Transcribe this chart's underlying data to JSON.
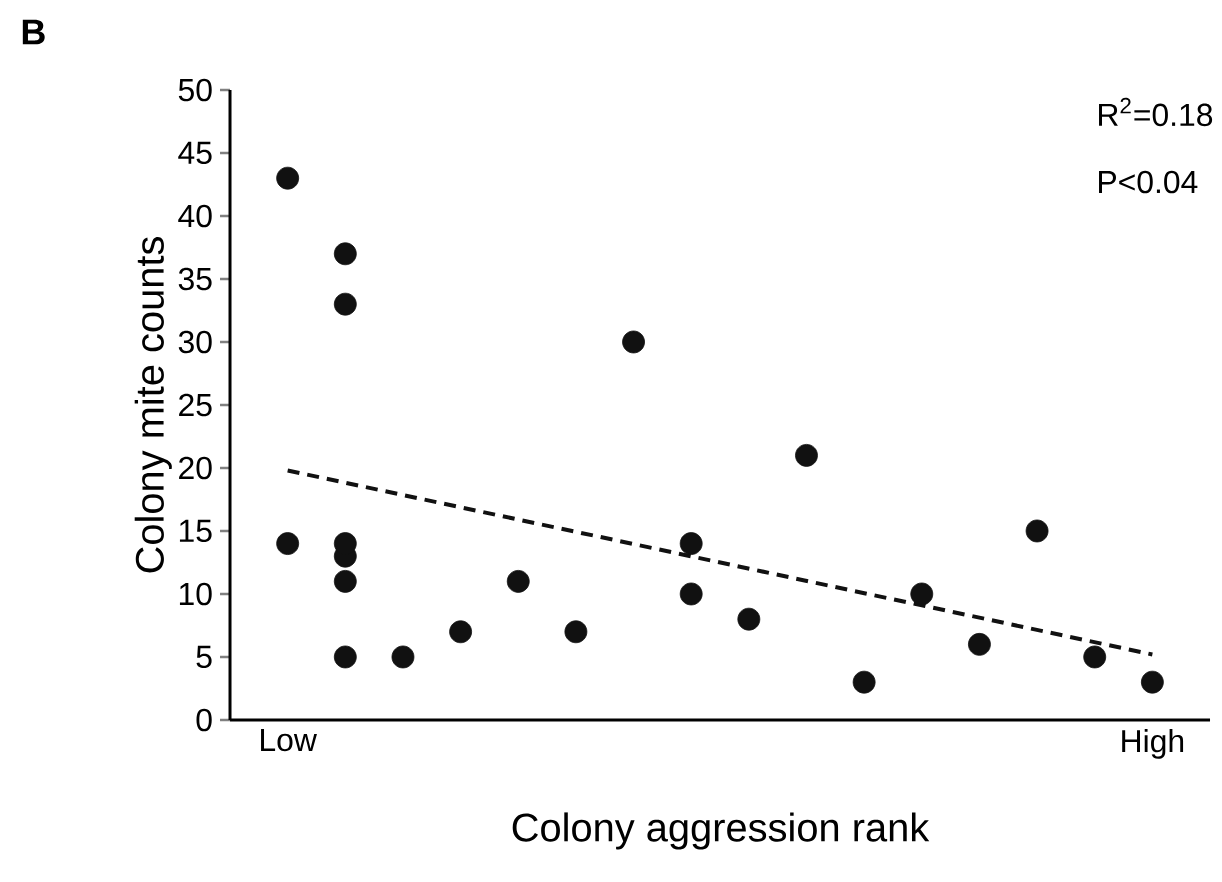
{
  "chart_data": {
    "type": "scatter",
    "xlabel": "Colony aggression rank",
    "ylabel": "Colony mite counts",
    "annotations": [
      "B",
      "R$^{2}$=0.18",
      "P<0.04"
    ],
    "categories": [
      "Low",
      null,
      null,
      null,
      null,
      null,
      null,
      null,
      null,
      null,
      null,
      null,
      null,
      null,
      null,
      "High"
    ],
    "ylim": [
      0,
      50
    ],
    "yticks": [
      0,
      5,
      10,
      15,
      20,
      25,
      30,
      35,
      40,
      45,
      50
    ],
    "series": [
      {
        "color": "#111111",
        "values": [
          14,
          5,
          5,
          7,
          11,
          7,
          30,
          10,
          8,
          21,
          3,
          10,
          6,
          15,
          5,
          3
        ]
      },
      {
        "color": "#111111",
        "values": [
          43,
          11,
          null,
          null,
          null,
          null,
          null,
          14,
          null,
          null,
          null,
          null,
          null,
          null,
          null,
          null
        ]
      },
      {
        "color": "#111111",
        "values": [
          null,
          13,
          null,
          null,
          null,
          null,
          null,
          null,
          null,
          null,
          null,
          null,
          null,
          null,
          null,
          null
        ]
      },
      {
        "color": "#111111",
        "values": [
          null,
          14,
          null,
          null,
          null,
          null,
          null,
          null,
          null,
          null,
          null,
          null,
          null,
          null,
          null,
          null
        ]
      },
      {
        "color": "#111111",
        "values": [
          null,
          33,
          null,
          null,
          null,
          null,
          null,
          null,
          null,
          null,
          null,
          null,
          null,
          null,
          null,
          null
        ]
      },
      {
        "color": "#111111",
        "values": [
          null,
          37,
          null,
          null,
          null,
          null,
          null,
          null,
          null,
          null,
          null,
          null,
          null,
          null,
          null,
          null
        ]
      },
      {
        "type": "line",
        "marker": "none",
        "line_style": "dashed",
        "color": "#111111",
        "values": [
          19.8,
          null,
          null,
          null,
          null,
          null,
          null,
          null,
          null,
          null,
          null,
          null,
          null,
          null,
          null,
          5.2
        ]
      }
    ]
  }
}
